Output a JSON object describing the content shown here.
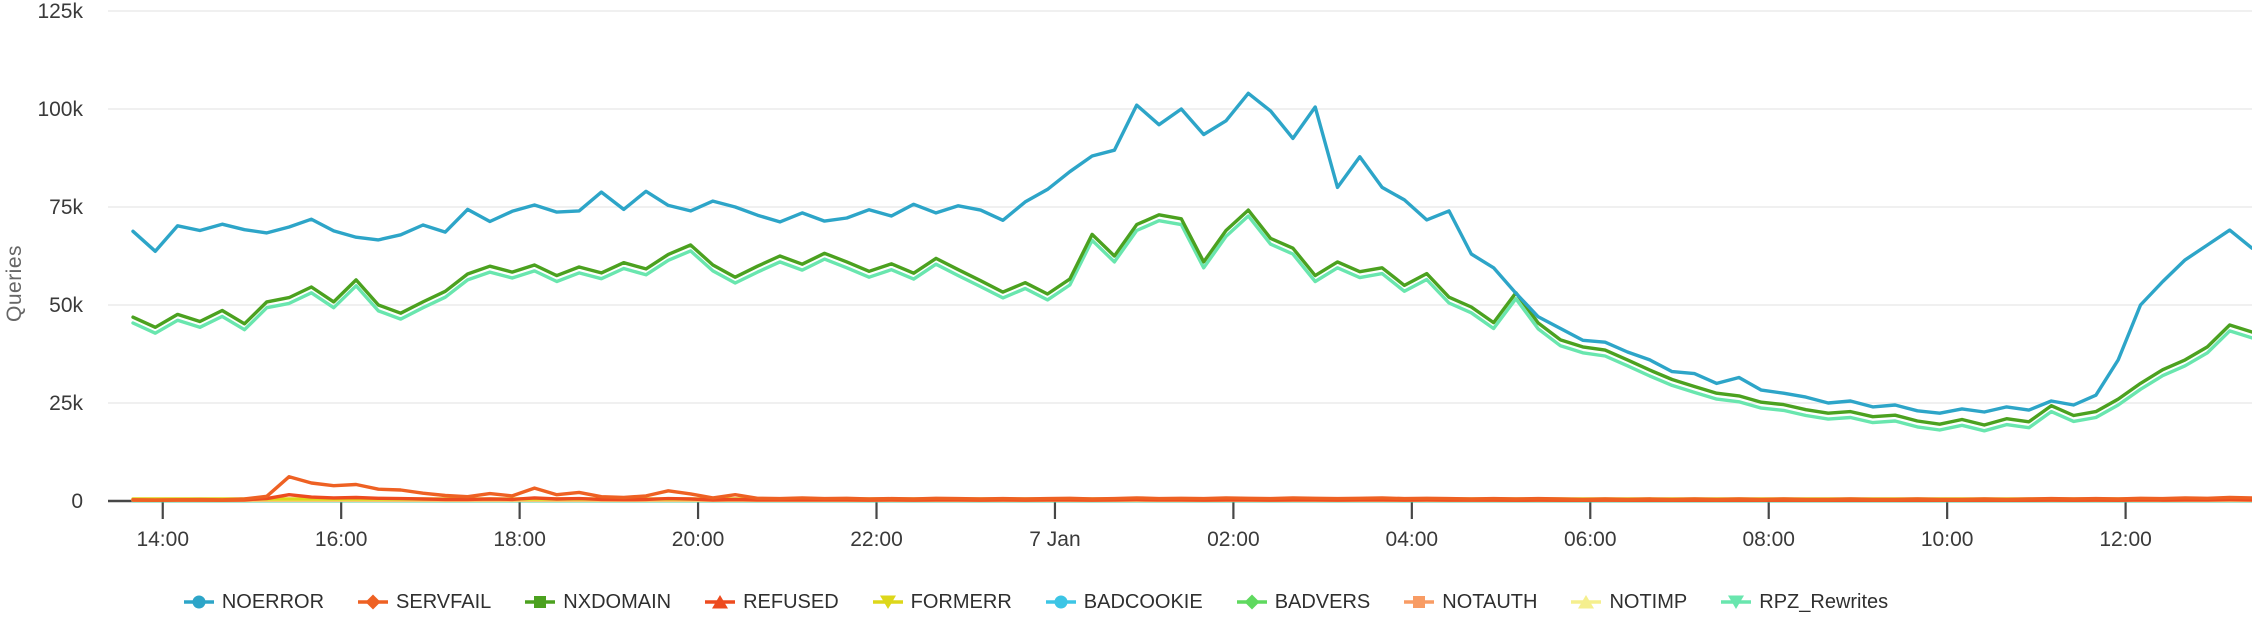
{
  "chart_data": {
    "type": "line",
    "title": "",
    "ylabel": "Queries",
    "unit": "queries",
    "values_unit": "thousands",
    "ylim_k": [
      0,
      125
    ],
    "grid": true,
    "legend_position": "bottom",
    "axis_color": "#474747",
    "grid_color": "#ebebeb",
    "text_color": "#3a3a3a",
    "x_domain_minutes": 1425,
    "y_ticks": [
      {
        "label": "0",
        "v": 0
      },
      {
        "label": "25k",
        "v": 25
      },
      {
        "label": "50k",
        "v": 50
      },
      {
        "label": "75k",
        "v": 75
      },
      {
        "label": "100k",
        "v": 100
      },
      {
        "label": "125k",
        "v": 125
      }
    ],
    "x_ticks": [
      {
        "label": "14:00",
        "t": 20
      },
      {
        "label": "16:00",
        "t": 140
      },
      {
        "label": "18:00",
        "t": 260
      },
      {
        "label": "20:00",
        "t": 380
      },
      {
        "label": "22:00",
        "t": 500
      },
      {
        "label": "7 Jan",
        "t": 620
      },
      {
        "label": "02:00",
        "t": 740
      },
      {
        "label": "04:00",
        "t": 860
      },
      {
        "label": "06:00",
        "t": 980
      },
      {
        "label": "08:00",
        "t": 1100
      },
      {
        "label": "10:00",
        "t": 1220
      },
      {
        "label": "12:00",
        "t": 1340
      }
    ],
    "draw_order": [
      "BADCOOKIE",
      "BADVERS",
      "NOTAUTH",
      "NOTIMP",
      "FORMERR",
      "REFUSED",
      "SERVFAIL",
      "RPZ_Rewrites",
      "NXDOMAIN",
      "NOERROR"
    ],
    "series": [
      {
        "name": "NOERROR",
        "color": "#2da5c8",
        "marker": "circle",
        "values_k": [
          68.8,
          63.7,
          70.2,
          69.0,
          70.6,
          69.2,
          68.4,
          69.9,
          71.9,
          68.9,
          67.3,
          66.6,
          67.9,
          70.4,
          68.6,
          74.4,
          71.3,
          73.9,
          75.5,
          73.7,
          74.0,
          78.8,
          74.4,
          79.0,
          75.4,
          74.0,
          76.5,
          75.0,
          72.9,
          71.2,
          73.5,
          71.4,
          72.2,
          74.3,
          72.7,
          75.7,
          73.5,
          75.3,
          74.2,
          71.6,
          76.3,
          79.5,
          84.0,
          88.0,
          89.5,
          101.0,
          96.0,
          100.0,
          93.5,
          97.0,
          104.0,
          99.5,
          92.5,
          100.5,
          80.0,
          87.8,
          80.0,
          76.8,
          71.7,
          74.0,
          63.0,
          59.5,
          53.0,
          47.0,
          44.0,
          41.0,
          40.5,
          38.0,
          36.0,
          33.0,
          32.5,
          30.0,
          31.5,
          28.3,
          27.5,
          26.5,
          25.0,
          25.5,
          24.0,
          24.5,
          23.0,
          22.4,
          23.5,
          22.7,
          24.0,
          23.2,
          25.5,
          24.5,
          27.0,
          36.0,
          50.0,
          56.0,
          61.5,
          65.3,
          69.1,
          64.5
        ]
      },
      {
        "name": "SERVFAIL",
        "color": "#ee6123",
        "marker": "diamond",
        "values_k": [
          0.3,
          0.25,
          0.3,
          0.35,
          0.3,
          0.5,
          1.2,
          6.2,
          4.6,
          3.9,
          4.2,
          3.0,
          2.8,
          2.0,
          1.4,
          1.1,
          1.9,
          1.3,
          3.3,
          1.6,
          2.2,
          1.1,
          0.9,
          1.3,
          2.6,
          1.8,
          0.8,
          1.6,
          0.7,
          0.6,
          0.8,
          0.6,
          0.7,
          0.5,
          0.6,
          0.5,
          0.7,
          0.6,
          0.5,
          0.6,
          0.5,
          0.6,
          0.7,
          0.5,
          0.6,
          0.8,
          0.6,
          0.7,
          0.6,
          0.8,
          0.7,
          0.6,
          0.8,
          0.7,
          0.6,
          0.7,
          0.8,
          0.6,
          0.7,
          0.6,
          0.5,
          0.6,
          0.5,
          0.6,
          0.5,
          0.4,
          0.5,
          0.4,
          0.5,
          0.4,
          0.5,
          0.4,
          0.5,
          0.4,
          0.5,
          0.4,
          0.4,
          0.5,
          0.4,
          0.4,
          0.5,
          0.4,
          0.4,
          0.5,
          0.4,
          0.5,
          0.6,
          0.5,
          0.6,
          0.5,
          0.7,
          0.6,
          0.8,
          0.7,
          0.9,
          0.8
        ]
      },
      {
        "name": "NXDOMAIN",
        "color": "#4ba11f",
        "marker": "square",
        "values_k": [
          46.9,
          44.3,
          47.6,
          45.8,
          48.6,
          45.2,
          50.8,
          51.9,
          54.6,
          50.8,
          56.4,
          50.0,
          47.9,
          50.8,
          53.5,
          57.9,
          59.9,
          58.4,
          60.2,
          57.5,
          59.7,
          58.2,
          60.8,
          59.2,
          62.9,
          65.3,
          60.2,
          57.1,
          59.9,
          62.5,
          60.4,
          63.2,
          61.0,
          58.6,
          60.5,
          58.1,
          61.9,
          59.0,
          56.2,
          53.3,
          55.7,
          52.8,
          56.6,
          68.0,
          62.5,
          70.5,
          73.0,
          72.0,
          61.0,
          69.0,
          74.2,
          67.0,
          64.5,
          57.5,
          61.0,
          58.5,
          59.5,
          55.0,
          58.0,
          52.0,
          49.5,
          45.5,
          53.1,
          45.4,
          41.1,
          39.3,
          38.5,
          36.0,
          33.4,
          31.0,
          29.2,
          27.5,
          26.8,
          25.2,
          24.6,
          23.3,
          22.4,
          22.8,
          21.5,
          21.9,
          20.4,
          19.6,
          20.8,
          19.4,
          21.0,
          20.2,
          24.3,
          21.8,
          22.8,
          26.0,
          30.0,
          33.5,
          36.0,
          39.3,
          44.9,
          43.1
        ]
      },
      {
        "name": "REFUSED",
        "color": "#ed4b1f",
        "marker": "triangle-up",
        "values_k": [
          0.25,
          0.2,
          0.25,
          0.25,
          0.2,
          0.3,
          0.6,
          1.6,
          1.0,
          0.8,
          0.9,
          0.7,
          0.6,
          0.5,
          0.4,
          0.4,
          0.5,
          0.4,
          0.8,
          0.5,
          0.6,
          0.4,
          0.35,
          0.4,
          0.6,
          0.5,
          0.3,
          0.4,
          0.3,
          0.3,
          0.3,
          0.3,
          0.3,
          0.25,
          0.3,
          0.25,
          0.3,
          0.3,
          0.25,
          0.3,
          0.25,
          0.3,
          0.3,
          0.25,
          0.3,
          0.35,
          0.3,
          0.3,
          0.25,
          0.3,
          0.3,
          0.25,
          0.3,
          0.3,
          0.25,
          0.3,
          0.3,
          0.25,
          0.3,
          0.25,
          0.25,
          0.25,
          0.2,
          0.25,
          0.2,
          0.2,
          0.25,
          0.2,
          0.2,
          0.2,
          0.2,
          0.2,
          0.2,
          0.2,
          0.2,
          0.2,
          0.2,
          0.2,
          0.2,
          0.2,
          0.2,
          0.2,
          0.2,
          0.2,
          0.2,
          0.2,
          0.25,
          0.2,
          0.25,
          0.2,
          0.3,
          0.25,
          0.3,
          0.3,
          0.35,
          0.3
        ]
      },
      {
        "name": "FORMERR",
        "color": "#ddd71a",
        "marker": "triangle-down",
        "values_k": [
          0.5,
          0.5,
          0.5,
          0.5
        ]
      },
      {
        "name": "BADCOOKIE",
        "color": "#3cc5e5",
        "marker": "circle",
        "values_k": [
          0.05,
          0.05,
          0.05,
          0.05
        ]
      },
      {
        "name": "BADVERS",
        "color": "#5fd95f",
        "marker": "diamond",
        "values_k": [
          0.12,
          0.12,
          0.12,
          0.12
        ]
      },
      {
        "name": "NOTAUTH",
        "color": "#f89c64",
        "marker": "square",
        "values_k": [
          0.18,
          0.18,
          0.18,
          0.18
        ]
      },
      {
        "name": "NOTIMP",
        "color": "#f5ef8e",
        "marker": "triangle-up",
        "values_k": [
          0.3,
          0.3,
          0.3,
          0.3
        ]
      },
      {
        "name": "RPZ_Rewrites",
        "color": "#69e6ae",
        "marker": "triangle-down",
        "values_k": [
          45.4,
          42.8,
          46.1,
          44.3,
          47.1,
          43.7,
          49.3,
          50.4,
          53.1,
          49.3,
          54.9,
          48.5,
          46.4,
          49.3,
          52.0,
          56.4,
          58.4,
          56.9,
          58.7,
          56.0,
          58.2,
          56.7,
          59.3,
          57.7,
          61.4,
          63.8,
          58.7,
          55.6,
          58.4,
          61.0,
          58.9,
          61.7,
          59.5,
          57.1,
          59.0,
          56.6,
          60.4,
          57.5,
          54.7,
          51.8,
          54.2,
          51.3,
          55.1,
          66.5,
          61.0,
          69.0,
          71.5,
          70.5,
          59.5,
          67.5,
          72.7,
          65.5,
          63.0,
          56.0,
          59.5,
          57.0,
          58.0,
          53.5,
          56.5,
          50.5,
          48.0,
          44.0,
          51.6,
          43.9,
          39.6,
          37.8,
          37.0,
          34.5,
          31.9,
          29.5,
          27.7,
          26.0,
          25.3,
          23.7,
          23.1,
          21.8,
          20.9,
          21.3,
          20.0,
          20.4,
          18.9,
          18.1,
          19.3,
          17.9,
          19.5,
          18.7,
          22.8,
          20.3,
          21.3,
          24.5,
          28.5,
          32.0,
          34.5,
          37.8,
          43.4,
          41.6
        ]
      }
    ]
  }
}
